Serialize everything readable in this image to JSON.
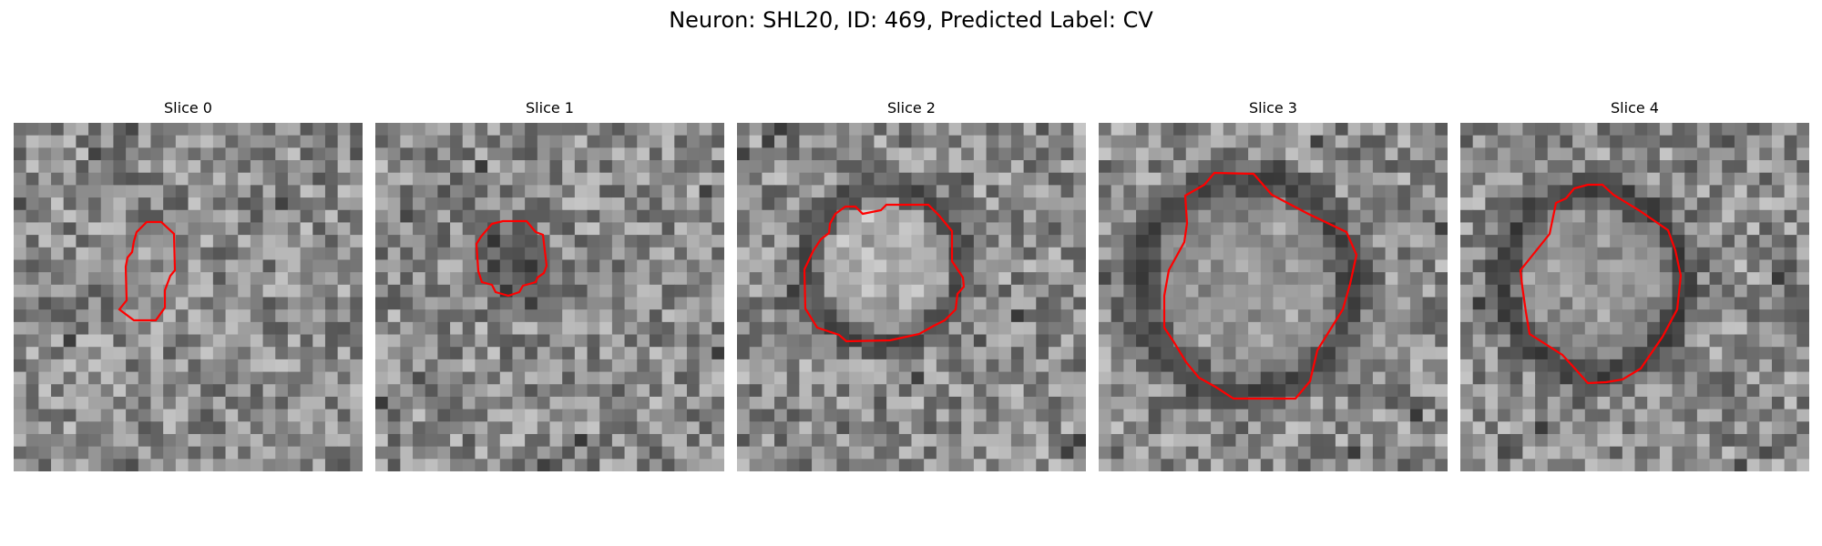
{
  "figure": {
    "title": "Neuron: SHL20, ID: 469, Predicted Label: CV"
  },
  "colors": {
    "contour": "#ff0000",
    "background": "#ffffff"
  },
  "panels": [
    {
      "title": "Slice 0",
      "seed": 11,
      "center_brightness": 0.62,
      "ring_brightness": 0.5
    },
    {
      "title": "Slice 1",
      "seed": 23,
      "center_brightness": 0.18,
      "ring_brightness": 0.3
    },
    {
      "title": "Slice 2",
      "seed": 37,
      "center_brightness": 0.78,
      "ring_brightness": 0.18
    },
    {
      "title": "Slice 3",
      "seed": 41,
      "center_brightness": 0.6,
      "ring_brightness": 0.15
    },
    {
      "title": "Slice 4",
      "seed": 53,
      "center_brightness": 0.6,
      "ring_brightness": 0.12
    }
  ]
}
